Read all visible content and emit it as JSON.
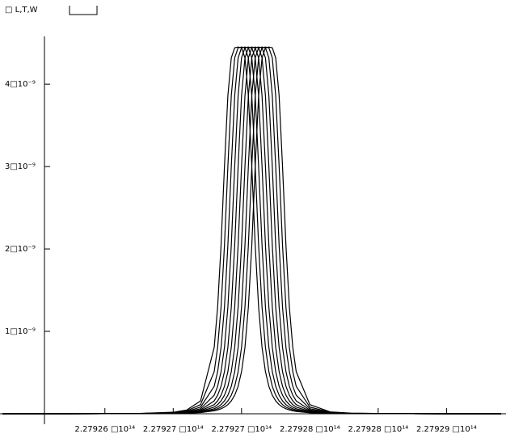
{
  "chart_data": {
    "type": "line",
    "annotation": "□ L,T,W",
    "color": "#000000",
    "x": [
      227925250000000,
      227925750000000,
      227926250000000,
      227926500000000,
      227926600000000,
      227926700000000,
      227926800000000,
      227926825000000,
      227926850000000,
      227926875000000,
      227926900000000,
      227926925000000,
      227926950000000,
      227926975000000,
      227927000000000,
      227927025000000,
      227927050000000,
      227927075000000,
      227927100000000,
      227927125000000,
      227927150000000,
      227927175000000,
      227927200000000,
      227927225000000,
      227927250000000,
      227927275000000,
      227927300000000,
      227927325000000,
      227927350000000,
      227927375000000,
      227927400000000,
      227927500000000,
      227927650000000,
      227927800000000,
      227928100000000,
      227928500000000,
      227928900000000
    ],
    "series": [
      {
        "values": [
          1e-13,
          4e-13,
          3.3e-12,
          1.8e-11,
          4.6e-11,
          1.56e-10,
          8.06e-10,
          1.294e-09,
          2.044e-09,
          3.002e-09,
          3.86e-09,
          4.32e-09,
          4.442e-09,
          4.45e-09,
          4.442e-09,
          4.32e-09,
          3.86e-09,
          3.002e-09,
          2.044e-09,
          1.294e-09,
          8.06e-10,
          5.11e-10,
          3.33e-10,
          2.25e-10,
          1.56e-10,
          1.11e-10,
          8.1e-11,
          6.1e-11,
          4.6e-11,
          3.6e-11,
          2.8e-11,
          1.21e-11,
          4.4e-12,
          2e-12,
          6e-13,
          2e-13,
          1e-13
        ]
      },
      {
        "values": [
          1e-13,
          4e-13,
          2.9e-12,
          1.47e-11,
          3.6e-11,
          1.11e-10,
          5.11e-10,
          8.06e-10,
          1.294e-09,
          2.044e-09,
          3.002e-09,
          3.86e-09,
          4.32e-09,
          4.442e-09,
          4.45e-09,
          4.442e-09,
          4.32e-09,
          3.86e-09,
          3.002e-09,
          2.044e-09,
          1.294e-09,
          8.06e-10,
          5.11e-10,
          3.33e-10,
          2.25e-10,
          1.56e-10,
          1.11e-10,
          8.1e-11,
          6.1e-11,
          4.6e-11,
          3.6e-11,
          1.47e-11,
          5.2e-12,
          2.3e-12,
          6e-13,
          2e-13,
          1e-13
        ]
      },
      {
        "values": [
          1e-13,
          4e-13,
          2.6e-12,
          1.21e-11,
          2.8e-11,
          8.1e-11,
          3.33e-10,
          5.11e-10,
          8.06e-10,
          1.294e-09,
          2.044e-09,
          3.002e-09,
          3.86e-09,
          4.32e-09,
          4.442e-09,
          4.45e-09,
          4.442e-09,
          4.32e-09,
          3.86e-09,
          3.002e-09,
          2.044e-09,
          1.294e-09,
          8.06e-10,
          5.11e-10,
          3.33e-10,
          2.25e-10,
          1.56e-10,
          1.11e-10,
          8.1e-11,
          6.1e-11,
          4.6e-11,
          1.8e-11,
          6e-12,
          2.6e-12,
          7e-13,
          2e-13,
          1e-13
        ]
      },
      {
        "values": [
          1e-13,
          3e-13,
          2.3e-12,
          1e-11,
          2.2e-11,
          6.1e-11,
          2.25e-10,
          3.33e-10,
          5.11e-10,
          8.06e-10,
          1.294e-09,
          2.044e-09,
          3.002e-09,
          3.86e-09,
          4.32e-09,
          4.442e-09,
          4.45e-09,
          4.442e-09,
          4.32e-09,
          3.86e-09,
          3.002e-09,
          2.044e-09,
          1.294e-09,
          8.06e-10,
          5.11e-10,
          3.33e-10,
          2.25e-10,
          1.56e-10,
          1.11e-10,
          8.1e-11,
          6.1e-11,
          2.2e-11,
          7.1e-12,
          2.9e-12,
          8e-13,
          2e-13,
          1e-13
        ]
      },
      {
        "values": [
          1e-13,
          3e-13,
          2e-12,
          8.4e-12,
          1.8e-11,
          4.6e-11,
          1.56e-10,
          2.25e-10,
          3.33e-10,
          5.11e-10,
          8.06e-10,
          1.294e-09,
          2.044e-09,
          3.002e-09,
          3.86e-09,
          4.32e-09,
          4.442e-09,
          4.45e-09,
          4.442e-09,
          4.32e-09,
          3.86e-09,
          3.002e-09,
          2.044e-09,
          1.294e-09,
          8.06e-10,
          5.11e-10,
          3.33e-10,
          2.25e-10,
          1.56e-10,
          1.11e-10,
          8.1e-11,
          2.8e-11,
          8.4e-12,
          3.3e-12,
          8e-13,
          2e-13,
          1e-13
        ]
      },
      {
        "values": [
          1e-13,
          3e-13,
          1.8e-12,
          7.1e-12,
          1.47e-11,
          3.6e-11,
          1.11e-10,
          1.56e-10,
          2.25e-10,
          3.33e-10,
          5.11e-10,
          8.06e-10,
          1.294e-09,
          2.044e-09,
          3.002e-09,
          3.86e-09,
          4.32e-09,
          4.442e-09,
          4.45e-09,
          4.442e-09,
          4.32e-09,
          3.86e-09,
          3.002e-09,
          2.044e-09,
          1.294e-09,
          8.06e-10,
          5.11e-10,
          3.33e-10,
          2.25e-10,
          1.56e-10,
          1.11e-10,
          3.6e-11,
          1e-11,
          3.8e-12,
          9e-13,
          3e-13,
          1e-13
        ]
      },
      {
        "values": [
          1e-13,
          3e-13,
          1.6e-12,
          6e-12,
          1.21e-11,
          2.8e-11,
          8.1e-11,
          1.11e-10,
          1.56e-10,
          2.25e-10,
          3.33e-10,
          5.11e-10,
          8.06e-10,
          1.294e-09,
          2.044e-09,
          3.002e-09,
          3.86e-09,
          4.32e-09,
          4.442e-09,
          4.45e-09,
          4.442e-09,
          4.32e-09,
          3.86e-09,
          3.002e-09,
          2.044e-09,
          1.294e-09,
          8.06e-10,
          5.11e-10,
          3.33e-10,
          2.25e-10,
          1.56e-10,
          4.6e-11,
          1.21e-11,
          4.4e-12,
          1e-12,
          3e-13,
          1e-13
        ]
      },
      {
        "values": [
          1e-13,
          2e-13,
          1.4e-12,
          5.2e-12,
          1e-11,
          2.2e-11,
          6.1e-11,
          8.1e-11,
          1.11e-10,
          1.56e-10,
          2.25e-10,
          3.33e-10,
          5.11e-10,
          8.06e-10,
          1.294e-09,
          2.044e-09,
          3.002e-09,
          3.86e-09,
          4.32e-09,
          4.442e-09,
          4.45e-09,
          4.442e-09,
          4.32e-09,
          3.86e-09,
          3.002e-09,
          2.044e-09,
          1.294e-09,
          8.06e-10,
          5.11e-10,
          3.33e-10,
          2.25e-10,
          6.1e-11,
          1.47e-11,
          5.2e-12,
          1.1e-12,
          3e-13,
          1e-13
        ]
      },
      {
        "values": [
          1e-13,
          2e-13,
          1.3e-12,
          4.4e-12,
          8.4e-12,
          1.8e-11,
          4.6e-11,
          6.1e-11,
          8.1e-11,
          1.11e-10,
          1.56e-10,
          2.25e-10,
          3.33e-10,
          5.11e-10,
          8.06e-10,
          1.294e-09,
          2.044e-09,
          3.002e-09,
          3.86e-09,
          4.32e-09,
          4.442e-09,
          4.45e-09,
          4.442e-09,
          4.32e-09,
          3.86e-09,
          3.002e-09,
          2.044e-09,
          1.294e-09,
          8.06e-10,
          5.11e-10,
          3.33e-10,
          8.1e-11,
          1.8e-11,
          6e-12,
          1.3e-12,
          3e-13,
          1e-13
        ]
      },
      {
        "values": [
          1e-13,
          2e-13,
          1.1e-12,
          3.8e-12,
          7.1e-12,
          1.47e-11,
          3.6e-11,
          4.6e-11,
          6.1e-11,
          8.1e-11,
          1.11e-10,
          1.56e-10,
          2.25e-10,
          3.33e-10,
          5.11e-10,
          8.06e-10,
          1.294e-09,
          2.044e-09,
          3.002e-09,
          3.86e-09,
          4.32e-09,
          4.442e-09,
          4.45e-09,
          4.442e-09,
          4.32e-09,
          3.86e-09,
          3.002e-09,
          2.044e-09,
          1.294e-09,
          8.06e-10,
          5.11e-10,
          1.11e-10,
          2.2e-11,
          7.1e-12,
          1.4e-12,
          3e-13,
          1e-13
        ]
      }
    ],
    "xlim": [
      227925250000000,
      227928900000000
    ],
    "xticks": [
      {
        "value": 227926000000000,
        "label": "2.27926 □10¹⁴"
      },
      {
        "value": 227926500000000,
        "label": "2.27927 □10¹⁴"
      },
      {
        "value": 227927000000000,
        "label": "2.27927 □10¹⁴"
      },
      {
        "value": 227927500000000,
        "label": "2.27928 □10¹⁴"
      },
      {
        "value": 227928000000000,
        "label": "2.27928 □10¹⁴"
      },
      {
        "value": 227928500000000,
        "label": "2.27929 □10¹⁴"
      }
    ],
    "ylim": [
      0,
      4.58e-09
    ],
    "yticks": [
      {
        "value": 1e-09,
        "label": "1□10⁻⁹"
      },
      {
        "value": 2e-09,
        "label": "2□10⁻⁹"
      },
      {
        "value": 3e-09,
        "label": "3□10⁻⁹"
      },
      {
        "value": 4e-09,
        "label": "4□10⁻⁹"
      }
    ],
    "grid": false
  }
}
